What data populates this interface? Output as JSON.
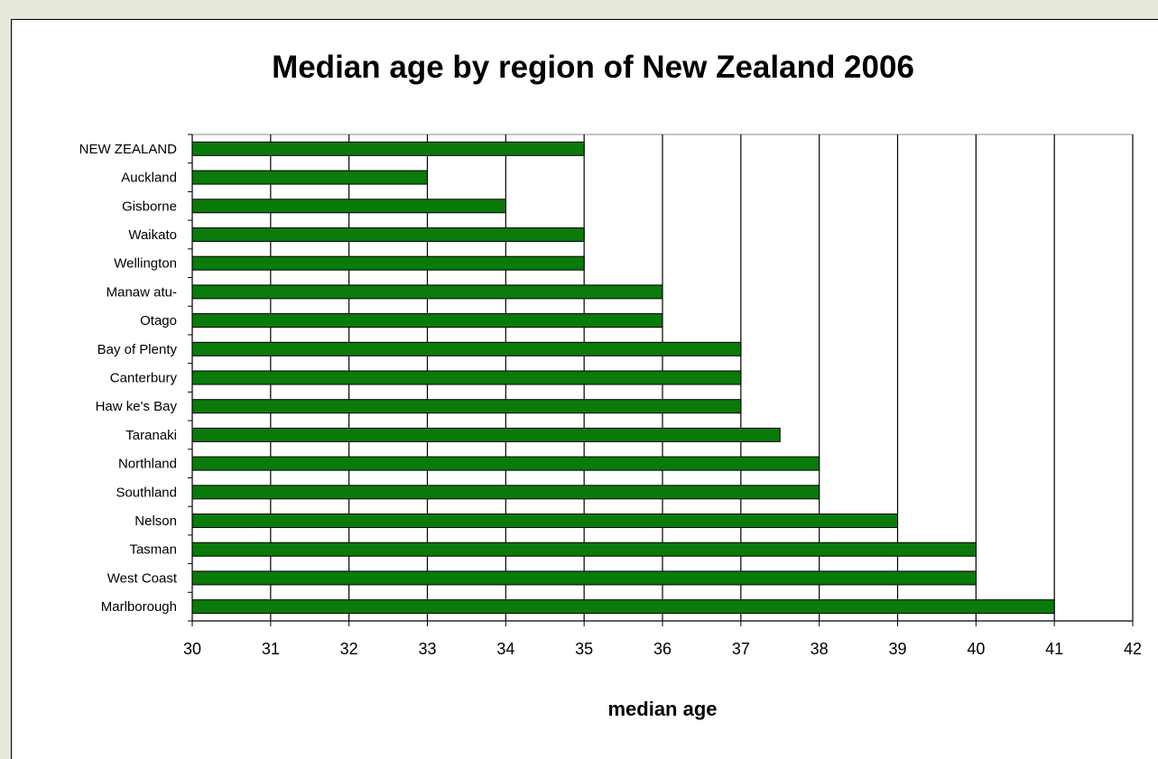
{
  "chart_data": {
    "type": "bar",
    "orientation": "horizontal",
    "title": "Median age by region of New Zealand 2006",
    "xlabel": "median age",
    "ylabel": "",
    "xlim": [
      30,
      42
    ],
    "x_ticks": [
      "30",
      "31",
      "32",
      "33",
      "34",
      "35",
      "36",
      "37",
      "38",
      "39",
      "40",
      "41",
      "42"
    ],
    "grid": "vertical",
    "legend": "none",
    "bar_color": "#0a7a0a",
    "categories": [
      "NEW ZEALAND",
      "Auckland",
      "Gisborne",
      "Waikato",
      "Wellington",
      "Manaw atu-",
      "Otago",
      "Bay of Plenty",
      "Canterbury",
      "Haw ke's Bay",
      "Taranaki",
      "Northland",
      "Southland",
      "Nelson",
      "Tasman",
      "West Coast",
      "Marlborough"
    ],
    "values": [
      35,
      33,
      34,
      35,
      35,
      36,
      36,
      37,
      37,
      37,
      37.5,
      38,
      38,
      39,
      40,
      40,
      41
    ]
  }
}
